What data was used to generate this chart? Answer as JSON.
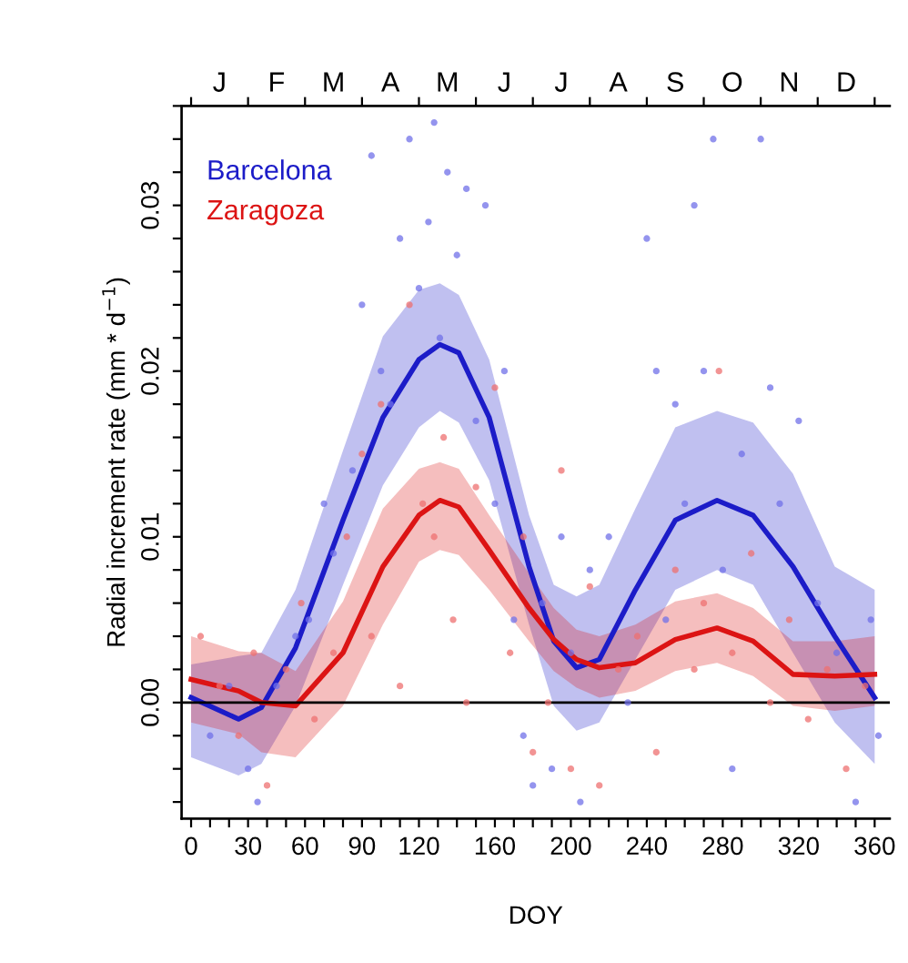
{
  "chart_data": {
    "type": "line",
    "xlabel": "DOY",
    "ylabel": "Radial increment rate (mm * d$^{−1}$)",
    "xlim": [
      -5,
      368
    ],
    "ylim": [
      -0.007,
      0.036
    ],
    "xticks": [
      0,
      {
        "value": 10,
        "label": null
      },
      {
        "value": 20,
        "label": null
      },
      30,
      {
        "value": 40,
        "label": null
      },
      {
        "value": 50,
        "label": null
      },
      60,
      {
        "value": 70,
        "label": null
      },
      {
        "value": 80,
        "label": null
      },
      90,
      {
        "value": 100,
        "label": null
      },
      {
        "value": 110,
        "label": null
      },
      120,
      {
        "value": 130,
        "label": null
      },
      {
        "value": 140,
        "label": null
      },
      {
        "value": 150,
        "label": null
      },
      160,
      {
        "value": 170,
        "label": null
      },
      {
        "value": 180,
        "label": null
      },
      {
        "value": 190,
        "label": null
      },
      200,
      {
        "value": 210,
        "label": null
      },
      {
        "value": 220,
        "label": null
      },
      {
        "value": 230,
        "label": null
      },
      240,
      {
        "value": 250,
        "label": null
      },
      {
        "value": 260,
        "label": null
      },
      {
        "value": 270,
        "label": null
      },
      280,
      {
        "value": 290,
        "label": null
      },
      {
        "value": 300,
        "label": null
      },
      {
        "value": 310,
        "label": null
      },
      320,
      {
        "value": 330,
        "label": null
      },
      {
        "value": 340,
        "label": null
      },
      {
        "value": 350,
        "label": null
      },
      360
    ],
    "annotations": [
      "J",
      "F",
      "M",
      "A",
      "M",
      "J",
      "J",
      "A",
      "S",
      "O",
      "N",
      "D"
    ],
    "yticks": [
      {
        "value": -0.006,
        "label": null
      },
      {
        "value": -0.004,
        "label": null
      },
      {
        "value": -0.002,
        "label": null
      },
      {
        "value": 0,
        "label": "0.00"
      },
      {
        "value": 0.002,
        "label": null
      },
      {
        "value": 0.004,
        "label": null
      },
      {
        "value": 0.006,
        "label": null
      },
      {
        "value": 0.008,
        "label": null
      },
      {
        "value": 0.01,
        "label": "0.01"
      },
      {
        "value": 0.012,
        "label": null
      },
      {
        "value": 0.014,
        "label": null
      },
      {
        "value": 0.016,
        "label": null
      },
      {
        "value": 0.018,
        "label": null
      },
      {
        "value": 0.02,
        "label": "0.02"
      },
      {
        "value": 0.022,
        "label": null
      },
      {
        "value": 0.024,
        "label": null
      },
      {
        "value": 0.026,
        "label": null
      },
      {
        "value": 0.028,
        "label": null
      },
      {
        "value": 0.03,
        "label": "0.03"
      },
      {
        "value": 0.032,
        "label": null
      },
      {
        "value": 0.034,
        "label": null
      },
      {
        "value": 0.036,
        "label": null
      }
    ],
    "grid": false,
    "legend": "top left",
    "ref_lines": [
      {
        "axis": "y",
        "value": 0,
        "label": null,
        "color": "#000000"
      }
    ],
    "series": [
      {
        "type": "scatter",
        "color": "#7070e8",
        "x": [
          10,
          20,
          30,
          35,
          45,
          55,
          62,
          70,
          75,
          85,
          90,
          95,
          100,
          105,
          110,
          115,
          120,
          125,
          128,
          131,
          135,
          140,
          145,
          150,
          155,
          160,
          165,
          170,
          175,
          180,
          185,
          190,
          195,
          200,
          205,
          210,
          220,
          230,
          240,
          245,
          250,
          255,
          260,
          265,
          270,
          275,
          280,
          285,
          290,
          300,
          305,
          310,
          320,
          330,
          340,
          350,
          358,
          362
        ],
        "values": [
          -0.002,
          0.001,
          -0.004,
          -0.006,
          0.001,
          0.004,
          0.005,
          0.012,
          0.009,
          0.014,
          0.024,
          0.033,
          0.02,
          0.018,
          0.028,
          0.034,
          0.025,
          0.029,
          0.035,
          0.022,
          0.032,
          0.027,
          0.031,
          0.017,
          0.03,
          0.012,
          0.02,
          0.005,
          -0.002,
          -0.005,
          0.006,
          -0.004,
          0.01,
          0.003,
          -0.006,
          0.008,
          0.01,
          0.0,
          0.028,
          0.02,
          0.005,
          0.018,
          0.012,
          0.03,
          0.02,
          0.034,
          0.008,
          -0.004,
          0.015,
          0.034,
          0.019,
          0.012,
          0.017,
          0.006,
          0.003,
          -0.006,
          0.005,
          -0.002
        ]
      },
      {
        "type": "scatter",
        "color": "#ee7070",
        "x": [
          5,
          15,
          25,
          33,
          40,
          50,
          58,
          65,
          75,
          82,
          90,
          95,
          100,
          110,
          115,
          122,
          128,
          133,
          138,
          145,
          150,
          160,
          168,
          175,
          180,
          188,
          195,
          200,
          210,
          215,
          225,
          235,
          245,
          255,
          265,
          270,
          278,
          285,
          295,
          305,
          315,
          325,
          335,
          345,
          355
        ],
        "values": [
          0.004,
          0.001,
          -0.002,
          0.003,
          -0.005,
          0.002,
          0.006,
          -0.001,
          0.003,
          0.01,
          0.015,
          0.004,
          0.018,
          0.001,
          0.024,
          0.012,
          0.01,
          0.016,
          0.005,
          0.0,
          0.013,
          0.019,
          0.003,
          0.01,
          -0.003,
          0.0,
          0.014,
          -0.004,
          0.007,
          -0.005,
          0.002,
          0.004,
          -0.003,
          0.008,
          0.002,
          0.006,
          0.02,
          0.003,
          0.009,
          0.0,
          0.005,
          -0.001,
          0.002,
          -0.004,
          0.001
        ]
      },
      {
        "name": "Barcelona",
        "color": "#1c1cc8",
        "x": [
          0,
          25,
          37,
          55,
          80,
          101,
          120,
          131,
          141,
          157,
          178,
          191,
          203,
          215,
          234,
          255,
          277,
          296,
          317,
          339,
          360
        ],
        "values": [
          0.0003,
          -0.001,
          -0.0003,
          0.0033,
          0.011,
          0.0172,
          0.0207,
          0.0216,
          0.0211,
          0.0172,
          0.0082,
          0.0037,
          0.0021,
          0.0026,
          0.0068,
          0.011,
          0.0122,
          0.0113,
          0.0082,
          0.004,
          0.0003
        ],
        "upper": [
          0.0023,
          0.0028,
          0.003,
          0.0068,
          0.0152,
          0.0221,
          0.0249,
          0.0253,
          0.0246,
          0.0207,
          0.0113,
          0.0071,
          0.0064,
          0.0071,
          0.0117,
          0.0166,
          0.0176,
          0.0169,
          0.0138,
          0.0082,
          0.0068
        ],
        "lower": [
          -0.0033,
          -0.0044,
          -0.0037,
          -0.0002,
          0.0071,
          0.0131,
          0.0166,
          0.0176,
          0.0169,
          0.0134,
          0.0047,
          -0.0002,
          -0.0017,
          -0.0012,
          0.0026,
          0.0068,
          0.008,
          0.0071,
          0.003,
          -0.0012,
          -0.0037
        ]
      },
      {
        "name": "Zaragoza",
        "color": "#dc1414",
        "x": [
          0,
          25,
          37,
          55,
          80,
          101,
          120,
          131,
          141,
          157,
          178,
          191,
          203,
          215,
          234,
          255,
          277,
          296,
          317,
          339,
          360
        ],
        "values": [
          0.0014,
          0.0007,
          0.0,
          -0.0002,
          0.003,
          0.0082,
          0.0113,
          0.0122,
          0.0118,
          0.0092,
          0.0057,
          0.0038,
          0.0026,
          0.0021,
          0.0024,
          0.0038,
          0.0045,
          0.0037,
          0.0017,
          0.0016,
          0.0017
        ],
        "upper": [
          0.004,
          0.0031,
          0.003,
          0.0019,
          0.0061,
          0.0117,
          0.0141,
          0.0145,
          0.0141,
          0.0113,
          0.0078,
          0.0057,
          0.0044,
          0.004,
          0.0047,
          0.0061,
          0.0066,
          0.0057,
          0.0037,
          0.0037,
          0.004
        ],
        "lower": [
          -0.0012,
          -0.0019,
          -0.003,
          -0.0033,
          -0.0002,
          0.0047,
          0.0085,
          0.0092,
          0.0089,
          0.0068,
          0.0037,
          0.0019,
          0.0009,
          0.0003,
          0.0007,
          0.0019,
          0.0024,
          0.0016,
          -0.0002,
          -0.0005,
          -0.0002
        ]
      }
    ]
  }
}
